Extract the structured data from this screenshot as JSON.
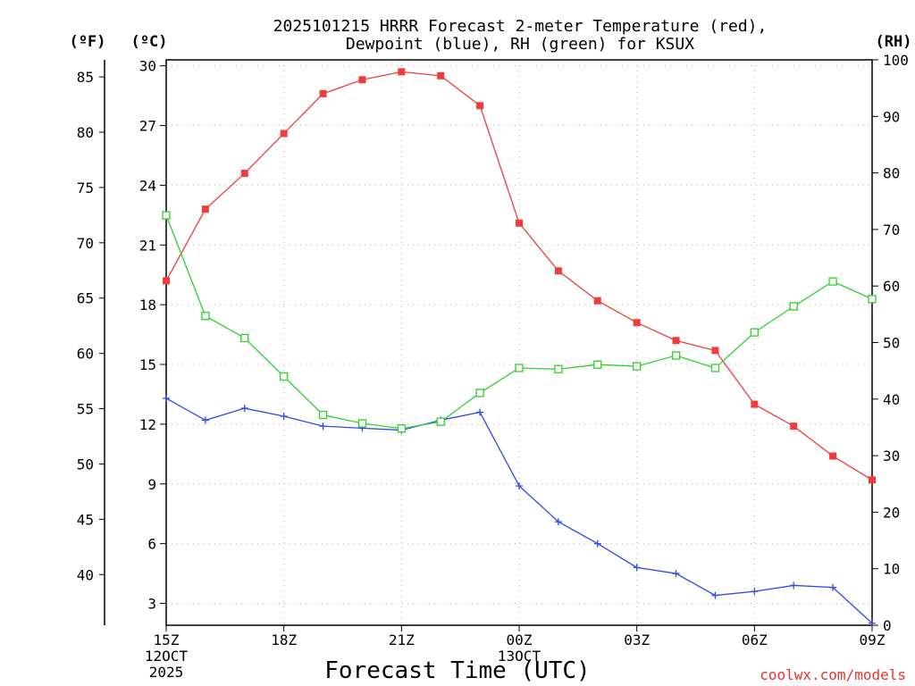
{
  "chart_data": {
    "type": "line",
    "title_line1": "2025101215 HRRR Forecast 2-meter Temperature (red),",
    "title_line2": "Dewpoint (blue), RH (green) for KSUX",
    "xlabel": "Forecast Time (UTC)",
    "credit": "coolwx.com/models",
    "unit_labels": {
      "fahrenheit": "(ºF)",
      "celsius": "(ºC)",
      "rh": "(RH)"
    },
    "x_hours": [
      0,
      1,
      2,
      3,
      4,
      5,
      6,
      7,
      8,
      9,
      10,
      11,
      12,
      13,
      14,
      15,
      16,
      17,
      18
    ],
    "x_ticks": [
      {
        "hour": 0,
        "lines": [
          "15Z",
          "12OCT",
          "2025"
        ]
      },
      {
        "hour": 3,
        "lines": [
          "18Z"
        ]
      },
      {
        "hour": 6,
        "lines": [
          "21Z"
        ]
      },
      {
        "hour": 9,
        "lines": [
          "00Z",
          "13OCT"
        ]
      },
      {
        "hour": 12,
        "lines": [
          "03Z"
        ]
      },
      {
        "hour": 15,
        "lines": [
          "06Z"
        ]
      },
      {
        "hour": 18,
        "lines": [
          "09Z"
        ]
      }
    ],
    "celsius_axis": {
      "range": [
        1.9,
        30.3
      ],
      "ticks": [
        3,
        6,
        9,
        12,
        15,
        18,
        21,
        24,
        27,
        30
      ]
    },
    "fahrenheit_ticks": [
      40,
      45,
      50,
      55,
      60,
      65,
      70,
      75,
      80,
      85
    ],
    "rh_axis": {
      "range": [
        0,
        100
      ],
      "ticks": [
        0,
        10,
        20,
        30,
        40,
        50,
        60,
        70,
        80,
        90,
        100
      ]
    },
    "series": [
      {
        "name": "Temperature",
        "axis": "celsius",
        "color": "#f03c3c",
        "marker": "filled-square",
        "values": [
          19.2,
          22.8,
          24.6,
          26.6,
          28.6,
          29.3,
          29.7,
          29.5,
          28.0,
          22.1,
          19.7,
          18.2,
          17.1,
          16.2,
          15.7,
          13.0,
          11.9,
          10.4,
          9.2
        ]
      },
      {
        "name": "Dewpoint",
        "axis": "celsius",
        "color": "#2e4ae6",
        "marker": "plus",
        "values": [
          13.3,
          12.2,
          12.8,
          12.4,
          11.9,
          11.8,
          11.7,
          12.2,
          12.6,
          8.9,
          7.1,
          6.0,
          4.8,
          4.5,
          3.4,
          3.6,
          3.9,
          3.8,
          2.0
        ]
      },
      {
        "name": "RH",
        "axis": "rh",
        "color": "#2ed12e",
        "marker": "open-square",
        "values": [
          72.5,
          54.7,
          50.8,
          44.0,
          37.2,
          35.7,
          34.8,
          36.0,
          41.1,
          45.5,
          45.3,
          46.1,
          45.8,
          47.7,
          45.5,
          51.8,
          56.4,
          60.8,
          57.7
        ]
      }
    ]
  }
}
